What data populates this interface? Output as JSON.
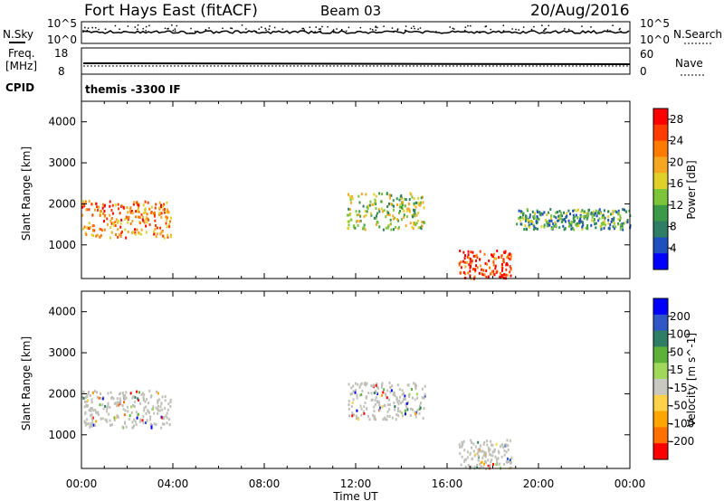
{
  "header": {
    "title": "Fort Hays East (fitACF)",
    "beam": "Beam 03",
    "date": "20/Aug/2016"
  },
  "panels": {
    "nsky": {
      "label": "N.Sky",
      "ticks": [
        "10^5",
        "10^0"
      ]
    },
    "nsearch": {
      "label": "N.Search",
      "ticks": [
        "10^5",
        "10^0"
      ]
    },
    "freq": {
      "label_top": "Freq.",
      "label_bottom": "[MHz]",
      "ticks": [
        "18",
        "8"
      ]
    },
    "nave": {
      "label": "Nave",
      "ticks": [
        "60",
        "0"
      ]
    },
    "cpid": {
      "label": "CPID",
      "value": "themis -3300 IF"
    }
  },
  "colors": {
    "power_scale": [
      "#0000ff",
      "#1f4fbf",
      "#2e7d64",
      "#3a9a47",
      "#7cc43a",
      "#e0d02a",
      "#f5a623",
      "#ff7a00",
      "#ff3b00",
      "#ff0000"
    ],
    "velocity_scale": [
      "#0000ff",
      "#3056c8",
      "#2e7d64",
      "#5db13a",
      "#9fd85a",
      "#c8c8c0",
      "#ffd24a",
      "#ffa500",
      "#ff7000",
      "#ff0000"
    ],
    "ground_scatter": "#c0c0b8"
  },
  "chart_data": [
    {
      "type": "heatmap",
      "title": "Power",
      "xlabel": "",
      "ylabel": "Slant Range [km]",
      "xlim": [
        "00:00",
        "24:00"
      ],
      "ylim": [
        180,
        4500
      ],
      "x_ticks": [
        "00:00",
        "04:00",
        "08:00",
        "12:00",
        "16:00",
        "20:00",
        "00:00"
      ],
      "y_ticks": [
        1000,
        2000,
        3000,
        4000
      ],
      "colorbar": {
        "label": "Power [dB]",
        "ticks": [
          4,
          8,
          12,
          16,
          20,
          24,
          28
        ],
        "range": [
          0,
          30
        ]
      },
      "echo_bands": [
        {
          "t_start": 0.0,
          "t_end": 3.9,
          "range_km": [
            1200,
            2100
          ],
          "power_db": 22
        },
        {
          "t_start": 11.6,
          "t_end": 15.0,
          "range_km": [
            1400,
            2300
          ],
          "power_db": 14
        },
        {
          "t_start": 16.5,
          "t_end": 18.8,
          "range_km": [
            200,
            900
          ],
          "power_db": 26
        },
        {
          "t_start": 19.0,
          "t_end": 24.0,
          "range_km": [
            1400,
            1900
          ],
          "power_db": 10
        }
      ]
    },
    {
      "type": "heatmap",
      "title": "Velocity",
      "xlabel": "Time UT",
      "ylabel": "Slant Range [km]",
      "xlim": [
        "00:00",
        "24:00"
      ],
      "ylim": [
        180,
        4500
      ],
      "x_ticks": [
        "00:00",
        "04:00",
        "08:00",
        "12:00",
        "16:00",
        "20:00",
        "00:00"
      ],
      "y_ticks": [
        1000,
        2000,
        3000,
        4000
      ],
      "colorbar": {
        "label": "Velocity [m s^-1]",
        "ticks": [
          200,
          100,
          50,
          15,
          -15,
          -50,
          -100,
          -200
        ],
        "range": [
          -250,
          250
        ]
      },
      "echo_bands": [
        {
          "t_start": 0.0,
          "t_end": 3.9,
          "range_km": [
            1200,
            2100
          ],
          "velocity": 0,
          "ground_scatter": true
        },
        {
          "t_start": 11.6,
          "t_end": 15.0,
          "range_km": [
            1400,
            2300
          ],
          "velocity": 0,
          "ground_scatter": true
        },
        {
          "t_start": 16.5,
          "t_end": 18.8,
          "range_km": [
            200,
            900
          ],
          "velocity": 0,
          "ground_scatter": true
        }
      ]
    }
  ]
}
